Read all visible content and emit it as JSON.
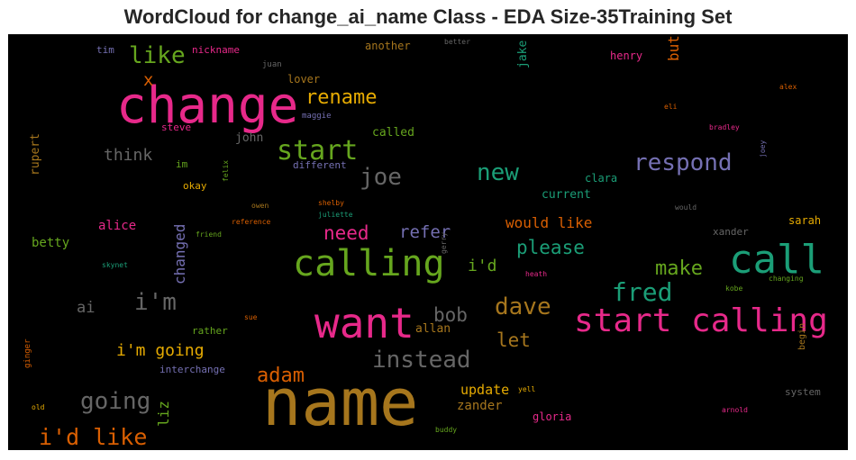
{
  "title": "WordCloud for change_ai_name Class - EDA Size-35Training Set",
  "chart_data": {
    "type": "wordcloud",
    "background": "#000000",
    "palette": [
      "#1b9e77",
      "#d95f02",
      "#7570b3",
      "#e7298a",
      "#66a61e",
      "#e6ab02",
      "#a6761d",
      "#666666"
    ],
    "words": [
      {
        "text": "name",
        "color": "#a6761d",
        "weight": 72
      },
      {
        "text": "change",
        "color": "#e7298a",
        "weight": 56
      },
      {
        "text": "want",
        "color": "#e7298a",
        "weight": 46
      },
      {
        "text": "call",
        "color": "#1b9e77",
        "weight": 44
      },
      {
        "text": "calling",
        "color": "#66a61e",
        "weight": 40
      },
      {
        "text": "start calling",
        "color": "#e7298a",
        "weight": 36
      },
      {
        "text": "start",
        "color": "#66a61e",
        "weight": 30
      },
      {
        "text": "fred",
        "color": "#1b9e77",
        "weight": 28
      },
      {
        "text": "like",
        "color": "#66a61e",
        "weight": 26
      },
      {
        "text": "instead",
        "color": "#666666",
        "weight": 26
      },
      {
        "text": "new",
        "color": "#1b9e77",
        "weight": 26
      },
      {
        "text": "joe",
        "color": "#666666",
        "weight": 26
      },
      {
        "text": "respond",
        "color": "#7570b3",
        "weight": 26
      },
      {
        "text": "going",
        "color": "#666666",
        "weight": 26
      },
      {
        "text": "dave",
        "color": "#a6761d",
        "weight": 26
      },
      {
        "text": "i'm",
        "color": "#666666",
        "weight": 26
      },
      {
        "text": "i'd like",
        "color": "#d95f02",
        "weight": 25
      },
      {
        "text": "rename",
        "color": "#e6ab02",
        "weight": 22
      },
      {
        "text": "make",
        "color": "#66a61e",
        "weight": 22
      },
      {
        "text": "adam",
        "color": "#d95f02",
        "weight": 22
      },
      {
        "text": "please",
        "color": "#1b9e77",
        "weight": 21
      },
      {
        "text": "need",
        "color": "#e7298a",
        "weight": 21
      },
      {
        "text": "bob",
        "color": "#666666",
        "weight": 21
      },
      {
        "text": "let",
        "color": "#a6761d",
        "weight": 21
      },
      {
        "text": "refer",
        "color": "#7570b3",
        "weight": 19
      },
      {
        "text": "x",
        "color": "#d95f02",
        "weight": 19
      },
      {
        "text": "think",
        "color": "#666666",
        "weight": 18
      },
      {
        "text": "i'm going",
        "color": "#e6ab02",
        "weight": 18
      },
      {
        "text": "i'd",
        "color": "#66a61e",
        "weight": 18
      },
      {
        "text": "ai",
        "color": "#666666",
        "weight": 17
      },
      {
        "text": "would like",
        "color": "#d95f02",
        "weight": 16
      },
      {
        "text": "changed",
        "color": "#7570b3",
        "weight": 16
      },
      {
        "text": "liz",
        "color": "#66a61e",
        "weight": 16
      },
      {
        "text": "buttercup",
        "color": "#d95f02",
        "weight": 16
      },
      {
        "text": "update",
        "color": "#e6ab02",
        "weight": 15
      },
      {
        "text": "betty",
        "color": "#66a61e",
        "weight": 14
      },
      {
        "text": "alice",
        "color": "#e7298a",
        "weight": 14
      },
      {
        "text": "zander",
        "color": "#a6761d",
        "weight": 14
      },
      {
        "text": "allan",
        "color": "#a6761d",
        "weight": 13
      },
      {
        "text": "john",
        "color": "#666666",
        "weight": 13
      },
      {
        "text": "called",
        "color": "#66a61e",
        "weight": 13
      },
      {
        "text": "current",
        "color": "#1b9e77",
        "weight": 13
      },
      {
        "text": "rupert",
        "color": "#a6761d",
        "weight": 13
      },
      {
        "text": "jake",
        "color": "#1b9e77",
        "weight": 13
      },
      {
        "text": "lover",
        "color": "#a6761d",
        "weight": 12
      },
      {
        "text": "another",
        "color": "#a6761d",
        "weight": 12
      },
      {
        "text": "gloria",
        "color": "#e7298a",
        "weight": 12
      },
      {
        "text": "henry",
        "color": "#e7298a",
        "weight": 12
      },
      {
        "text": "sarah",
        "color": "#e6ab02",
        "weight": 12
      },
      {
        "text": "clara",
        "color": "#1b9e77",
        "weight": 12
      },
      {
        "text": "steve",
        "color": "#e7298a",
        "weight": 11
      },
      {
        "text": "okay",
        "color": "#e6ab02",
        "weight": 11
      },
      {
        "text": "different",
        "color": "#7570b3",
        "weight": 11
      },
      {
        "text": "nickname",
        "color": "#e7298a",
        "weight": 11
      },
      {
        "text": "tim",
        "color": "#7570b3",
        "weight": 11
      },
      {
        "text": "im",
        "color": "#66a61e",
        "weight": 11
      },
      {
        "text": "interchange",
        "color": "#7570b3",
        "weight": 11
      },
      {
        "text": "rather",
        "color": "#66a61e",
        "weight": 11
      },
      {
        "text": "system",
        "color": "#666666",
        "weight": 11
      },
      {
        "text": "xander",
        "color": "#666666",
        "weight": 11
      },
      {
        "text": "begin",
        "color": "#a6761d",
        "weight": 10
      },
      {
        "text": "ginger",
        "color": "#d95f02",
        "weight": 9
      },
      {
        "text": "juan",
        "color": "#666666",
        "weight": 9
      },
      {
        "text": "maggie",
        "color": "#7570b3",
        "weight": 9
      },
      {
        "text": "better",
        "color": "#666666",
        "weight": 8
      },
      {
        "text": "alex",
        "color": "#d95f02",
        "weight": 8
      },
      {
        "text": "eli",
        "color": "#d95f02",
        "weight": 8
      },
      {
        "text": "bradley",
        "color": "#e7298a",
        "weight": 8
      },
      {
        "text": "joey",
        "color": "#7570b3",
        "weight": 8
      },
      {
        "text": "felix",
        "color": "#66a61e",
        "weight": 8
      },
      {
        "text": "owen",
        "color": "#a6761d",
        "weight": 8
      },
      {
        "text": "shelby",
        "color": "#d95f02",
        "weight": 8
      },
      {
        "text": "juliette",
        "color": "#1b9e77",
        "weight": 8
      },
      {
        "text": "reference",
        "color": "#d95f02",
        "weight": 8
      },
      {
        "text": "friend",
        "color": "#66a61e",
        "weight": 8
      },
      {
        "text": "would",
        "color": "#666666",
        "weight": 8
      },
      {
        "text": "skynet",
        "color": "#1b9e77",
        "weight": 8
      },
      {
        "text": "gerry",
        "color": "#666666",
        "weight": 8
      },
      {
        "text": "heath",
        "color": "#e7298a",
        "weight": 8
      },
      {
        "text": "kobe",
        "color": "#66a61e",
        "weight": 8
      },
      {
        "text": "changing",
        "color": "#66a61e",
        "weight": 8
      },
      {
        "text": "sue",
        "color": "#d95f02",
        "weight": 8
      },
      {
        "text": "yell",
        "color": "#e6ab02",
        "weight": 8
      },
      {
        "text": "old",
        "color": "#e6ab02",
        "weight": 8
      },
      {
        "text": "buddy",
        "color": "#66a61e",
        "weight": 8
      },
      {
        "text": "arnold",
        "color": "#e7298a",
        "weight": 8
      }
    ]
  }
}
